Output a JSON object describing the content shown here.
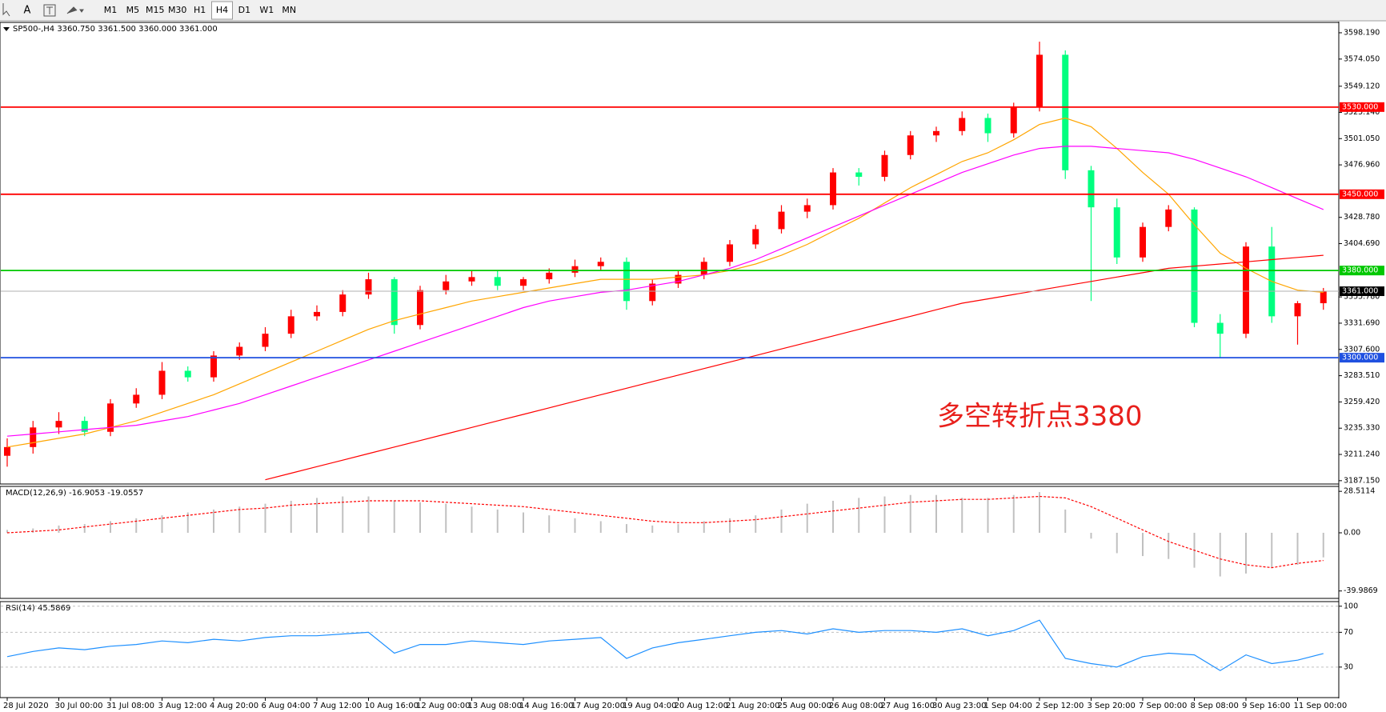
{
  "toolbar": {
    "tools": [
      "A"
    ],
    "timeframes": [
      "M1",
      "M5",
      "M15",
      "M30",
      "H1",
      "H4",
      "D1",
      "W1",
      "MN"
    ],
    "active": "H4"
  },
  "chart_data": [
    {
      "type": "candlestick",
      "title": "SP500-,H4  3360.750 3361.500 3360.000 3361.000",
      "categories": [
        "28 Jul 2020",
        null,
        "30 Jul 00:00",
        null,
        "31 Jul 08:00",
        null,
        "3 Aug 12:00",
        null,
        "4 Aug 20:00",
        null,
        "6 Aug 04:00",
        null,
        "7 Aug 12:00",
        null,
        "10 Aug 16:00",
        null,
        "12 Aug 00:00",
        null,
        "13 Aug 08:00",
        null,
        "14 Aug 16:00",
        null,
        "17 Aug 20:00",
        null,
        "19 Aug 04:00",
        null,
        "20 Aug 12:00",
        null,
        "21 Aug 20:00",
        null,
        "25 Aug 00:00",
        null,
        "26 Aug 08:00",
        null,
        "27 Aug 16:00",
        null,
        "30 Aug 23:00",
        null,
        "1 Sep 04:00",
        null,
        "2 Sep 12:00",
        null,
        "3 Sep 20:00",
        null,
        "7 Sep 00:00",
        null,
        "8 Sep 08:00",
        null,
        "9 Sep 16:00",
        null,
        "11 Sep 00:00",
        null
      ],
      "open": [
        3210,
        3218,
        3236,
        3242,
        3232,
        3258,
        3266,
        3288,
        3282,
        3302,
        3310,
        3322,
        3338,
        3342,
        3358,
        3372,
        3330,
        3362,
        3370,
        3374,
        3366,
        3372,
        3378,
        3384,
        3388,
        3352,
        3368,
        3376,
        3388,
        3404,
        3418,
        3434,
        3440,
        3470,
        3466,
        3486,
        3504,
        3508,
        3520,
        3506,
        3530,
        3578,
        3472,
        3438,
        3392,
        3420,
        3436,
        3332,
        3322,
        3402,
        3338,
        3350
      ],
      "high": [
        3226,
        3242,
        3250,
        3246,
        3262,
        3272,
        3296,
        3292,
        3306,
        3314,
        3328,
        3344,
        3348,
        3362,
        3378,
        3374,
        3366,
        3376,
        3380,
        3380,
        3374,
        3382,
        3390,
        3392,
        3392,
        3372,
        3380,
        3392,
        3408,
        3422,
        3440,
        3446,
        3474,
        3474,
        3490,
        3508,
        3512,
        3526,
        3524,
        3534,
        3590,
        3582,
        3476,
        3446,
        3424,
        3440,
        3438,
        3340,
        3406,
        3420,
        3352,
        3364
      ],
      "low": [
        3200,
        3212,
        3230,
        3228,
        3228,
        3254,
        3262,
        3278,
        3278,
        3298,
        3306,
        3318,
        3334,
        3338,
        3354,
        3322,
        3326,
        3358,
        3366,
        3362,
        3362,
        3368,
        3374,
        3380,
        3344,
        3348,
        3364,
        3372,
        3384,
        3400,
        3414,
        3428,
        3436,
        3458,
        3462,
        3482,
        3498,
        3504,
        3498,
        3502,
        3526,
        3464,
        3352,
        3386,
        3388,
        3416,
        3328,
        3300,
        3318,
        3332,
        3312,
        3344
      ],
      "close": [
        3218,
        3236,
        3242,
        3232,
        3258,
        3266,
        3288,
        3282,
        3302,
        3310,
        3322,
        3338,
        3342,
        3358,
        3372,
        3330,
        3362,
        3370,
        3374,
        3366,
        3372,
        3378,
        3384,
        3388,
        3352,
        3368,
        3376,
        3388,
        3404,
        3418,
        3434,
        3440,
        3470,
        3466,
        3486,
        3504,
        3508,
        3520,
        3506,
        3530,
        3578,
        3472,
        3438,
        3392,
        3420,
        3436,
        3332,
        3322,
        3402,
        3338,
        3350,
        3361
      ],
      "up_color": "#ff0000",
      "down_color": "#00ff7f",
      "moving_averages": [
        {
          "color": "#ffa500",
          "values": [
            3218,
            3222,
            3226,
            3230,
            3236,
            3242,
            3250,
            3258,
            3266,
            3276,
            3286,
            3296,
            3306,
            3316,
            3326,
            3334,
            3340,
            3346,
            3352,
            3356,
            3360,
            3364,
            3368,
            3372,
            3372,
            3372,
            3374,
            3376,
            3380,
            3386,
            3394,
            3404,
            3416,
            3428,
            3442,
            3456,
            3468,
            3480,
            3488,
            3500,
            3514,
            3520,
            3512,
            3492,
            3470,
            3450,
            3422,
            3396,
            3382,
            3370,
            3362,
            3360
          ]
        },
        {
          "color": "#ff00ff",
          "values": [
            3228,
            3230,
            3232,
            3234,
            3236,
            3238,
            3242,
            3246,
            3252,
            3258,
            3266,
            3274,
            3282,
            3290,
            3298,
            3306,
            3314,
            3322,
            3330,
            3338,
            3346,
            3352,
            3356,
            3360,
            3362,
            3366,
            3370,
            3376,
            3382,
            3390,
            3400,
            3410,
            3420,
            3430,
            3440,
            3450,
            3460,
            3470,
            3478,
            3486,
            3492,
            3494,
            3494,
            3492,
            3490,
            3488,
            3482,
            3474,
            3466,
            3456,
            3446,
            3436
          ]
        },
        {
          "color": "#ff0000",
          "values": [
            null,
            null,
            null,
            null,
            null,
            null,
            null,
            null,
            null,
            null,
            3188,
            3194,
            3200,
            3206,
            3212,
            3218,
            3224,
            3230,
            3236,
            3242,
            3248,
            3254,
            3260,
            3266,
            3272,
            3278,
            3284,
            3290,
            3296,
            3302,
            3308,
            3314,
            3320,
            3326,
            3332,
            3338,
            3344,
            3350,
            3354,
            3358,
            3362,
            3366,
            3370,
            3374,
            3378,
            3382,
            3384,
            3386,
            3388,
            3390,
            3392,
            3394
          ]
        }
      ],
      "ylim": [
        3184.1,
        3607.7
      ],
      "yticks": [
        {
          "value": 3598.19,
          "label": "3598.190"
        },
        {
          "value": 3574.05,
          "label": "3574.050"
        },
        {
          "value": 3549.12,
          "label": "3549.120"
        },
        {
          "value": 3525.14,
          "label": "3525.140"
        },
        {
          "value": 3501.05,
          "label": "3501.050"
        },
        {
          "value": 3476.96,
          "label": "3476.960"
        },
        {
          "value": 3428.78,
          "label": "3428.780"
        },
        {
          "value": 3404.69,
          "label": "3404.690"
        },
        {
          "value": 3355.78,
          "label": "3355.780"
        },
        {
          "value": 3331.69,
          "label": "3331.690"
        },
        {
          "value": 3307.6,
          "label": "3307.600"
        },
        {
          "value": 3283.51,
          "label": "3283.510"
        },
        {
          "value": 3259.42,
          "label": "3259.420"
        },
        {
          "value": 3235.33,
          "label": "3235.330"
        },
        {
          "value": 3211.24,
          "label": "3211.240"
        },
        {
          "value": 3187.15,
          "label": "3187.150"
        }
      ],
      "levels": [
        {
          "value": 3530,
          "label": "3530.000",
          "color": "#ff0000"
        },
        {
          "value": 3450,
          "label": "3450.000",
          "color": "#ff0000"
        },
        {
          "value": 3380,
          "label": "3380.000",
          "color": "#00c800"
        },
        {
          "value": 3300,
          "label": "3300.000",
          "color": "#1f50e0"
        },
        {
          "value": 3361,
          "label": "3361.000",
          "color": "#b0b0b0",
          "box": "#000000"
        }
      ],
      "annotation": {
        "text": "多空转折点3380",
        "color": "#e8201c"
      }
    },
    {
      "type": "macd",
      "title": "MACD(12,26,9) -16.9053 -19.0557",
      "histogram": [
        2,
        3,
        5,
        6,
        8,
        10,
        12,
        14,
        16,
        18,
        20,
        22,
        24,
        25,
        25,
        22,
        21,
        20,
        18,
        16,
        14,
        12,
        10,
        8,
        6,
        5,
        6,
        8,
        10,
        12,
        16,
        20,
        22,
        24,
        25,
        26,
        26,
        24,
        24,
        26,
        28,
        16,
        -4,
        -14,
        -16,
        -18,
        -24,
        -30,
        -28,
        -24,
        -22,
        -16.9053
      ],
      "signal": [
        0,
        1,
        2,
        4,
        6,
        8,
        10,
        12,
        14,
        16,
        17,
        19,
        20,
        21,
        22,
        22,
        22,
        21,
        20,
        19,
        18,
        16,
        14,
        12,
        10,
        8,
        7,
        7,
        8,
        9,
        11,
        13,
        15,
        17,
        19,
        21,
        22,
        23,
        23,
        24,
        25,
        24,
        18,
        10,
        2,
        -6,
        -12,
        -18,
        -22,
        -24,
        -21,
        -19.0557
      ],
      "histogram_color": "#c0c0c0",
      "signal_color": "#ff0000",
      "ylim": [
        -45.1,
        31.9
      ],
      "yticks": [
        {
          "value": 28.5114,
          "label": "28.5114"
        },
        {
          "value": 0,
          "label": "0.00"
        },
        {
          "value": -39.9869,
          "label": "-39.9869"
        }
      ]
    },
    {
      "type": "rsi",
      "title": "RSI(14) 45.5869",
      "values": [
        42,
        48,
        52,
        50,
        54,
        56,
        60,
        58,
        62,
        60,
        64,
        66,
        66,
        68,
        70,
        46,
        56,
        56,
        60,
        58,
        56,
        60,
        62,
        64,
        40,
        52,
        58,
        62,
        66,
        70,
        72,
        68,
        74,
        70,
        72,
        72,
        70,
        74,
        66,
        72,
        84,
        40,
        34,
        30,
        42,
        46,
        44,
        26,
        44,
        34,
        38,
        45.5869
      ],
      "color": "#1e90ff",
      "ylim": [
        -5.1,
        105.3
      ],
      "yticks": [
        100,
        70,
        30
      ]
    }
  ]
}
